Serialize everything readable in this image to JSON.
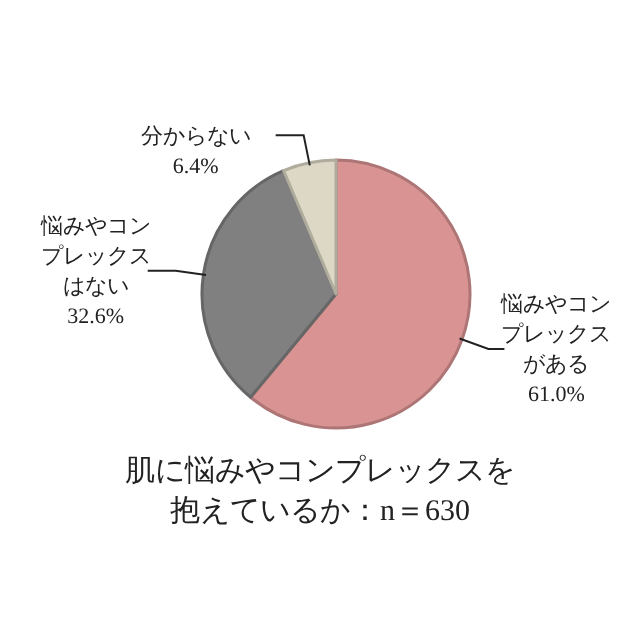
{
  "chart_data": {
    "type": "pie",
    "title": "肌に悩みやコンプレックスを抱えているか：n＝630",
    "categories": [
      "悩みやコンプレックスがある",
      "悩みやコンプレックスはない",
      "分からない"
    ],
    "values": [
      61.0,
      32.6,
      6.4
    ],
    "value_labels": [
      "61.0%",
      "32.6%",
      "6.4%"
    ],
    "colors": [
      "#d99393",
      "#808080",
      "#ddd8c5"
    ]
  }
}
